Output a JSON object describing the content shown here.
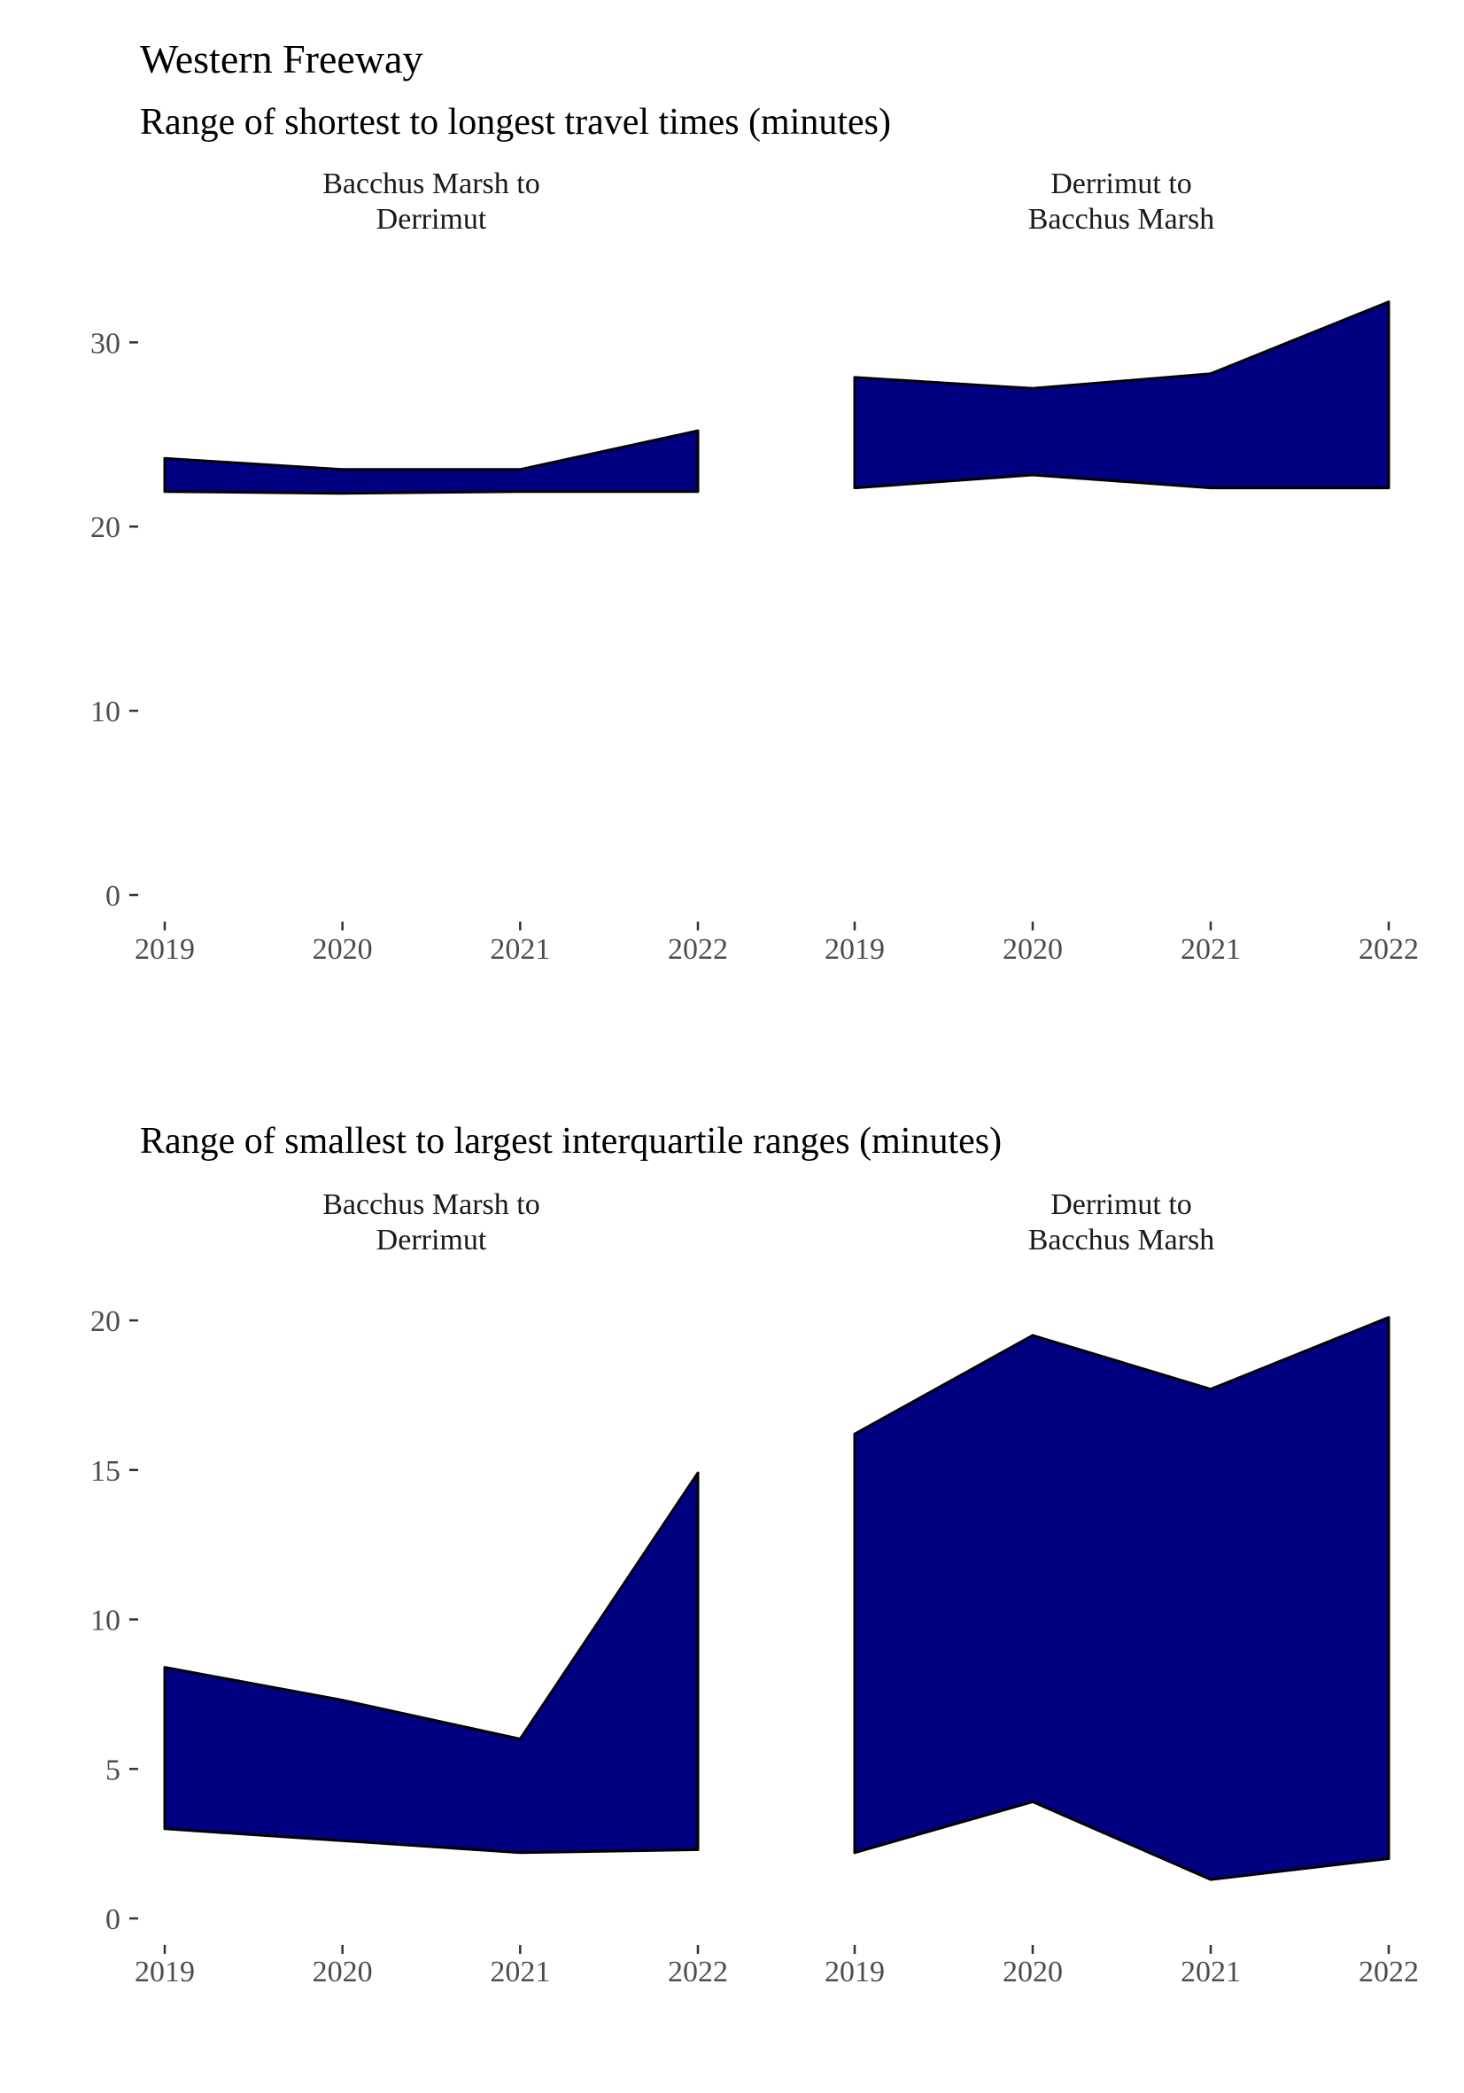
{
  "title": "Western Freeway",
  "colors": {
    "fill": "#000080",
    "outline": "#000000",
    "tick_text": "#4d4d4d"
  },
  "chart_data": [
    {
      "type": "area",
      "subtitle": "Range of shortest to longest travel times (minutes)",
      "x": [
        "2019",
        "2020",
        "2021",
        "2022"
      ],
      "ylim": [
        0,
        33
      ],
      "yticks": [
        "0",
        "10",
        "20",
        "30"
      ],
      "grid": false,
      "facets": [
        {
          "label_line1": "Bacchus Marsh to",
          "label_line2": "Derrimut",
          "min": [
            21.9,
            21.8,
            21.9,
            21.9
          ],
          "max": [
            23.7,
            23.1,
            23.1,
            25.2
          ]
        },
        {
          "label_line1": "Derrimut to",
          "label_line2": "Bacchus Marsh",
          "min": [
            22.1,
            22.8,
            22.1,
            22.1
          ],
          "max": [
            28.1,
            27.5,
            28.3,
            32.2
          ]
        }
      ]
    },
    {
      "type": "area",
      "subtitle": "Range of smallest to largest interquartile ranges (minutes)",
      "x": [
        "2019",
        "2020",
        "2021",
        "2022"
      ],
      "ylim": [
        0,
        20.3
      ],
      "yticks": [
        "0",
        "5",
        "10",
        "15",
        "20"
      ],
      "grid": false,
      "facets": [
        {
          "label_line1": "Bacchus Marsh to",
          "label_line2": "Derrimut",
          "min": [
            3.0,
            2.6,
            2.2,
            2.3
          ],
          "max": [
            8.4,
            7.3,
            6.0,
            14.9
          ]
        },
        {
          "label_line1": "Derrimut to",
          "label_line2": "Bacchus Marsh",
          "min": [
            2.2,
            3.9,
            1.3,
            2.0
          ],
          "max": [
            16.2,
            19.5,
            17.7,
            20.1
          ]
        }
      ]
    }
  ]
}
